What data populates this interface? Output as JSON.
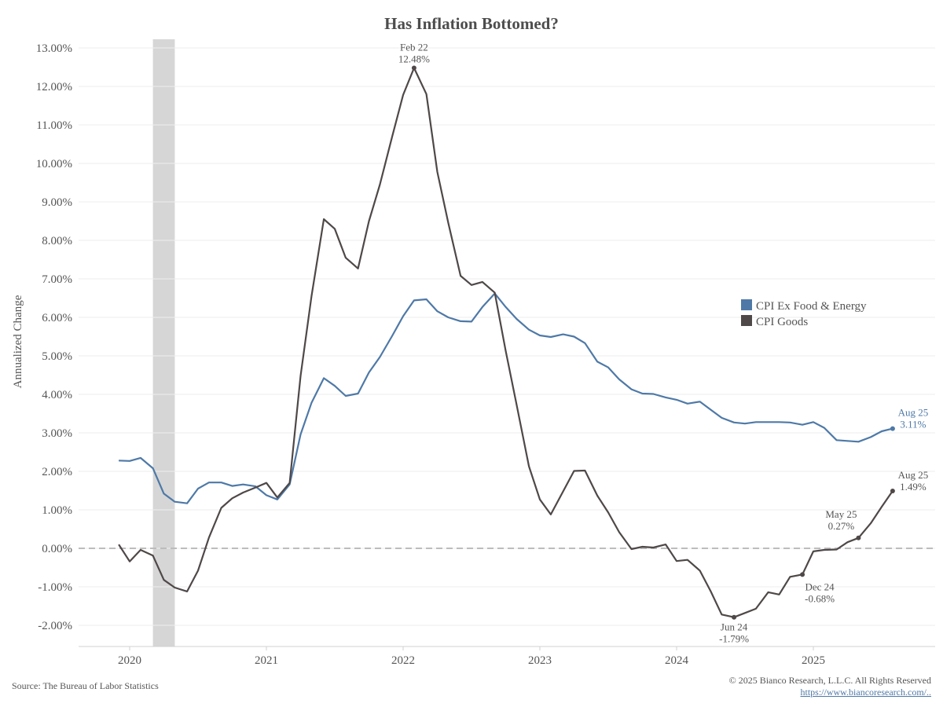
{
  "chart_data": {
    "type": "line",
    "title": "Has Inflation Bottomed?",
    "ylabel": "Annualized Change",
    "xlabel": "",
    "ylim": [
      -2.6,
      13.2
    ],
    "xlim": [
      2019.67,
      2025.96
    ],
    "y_ticks": [
      "13.00%",
      "12.00%",
      "11.00%",
      "10.00%",
      "9.00%",
      "8.00%",
      "7.00%",
      "6.00%",
      "5.00%",
      "4.00%",
      "3.00%",
      "2.00%",
      "1.00%",
      "0.00%",
      "-1.00%",
      "-2.00%"
    ],
    "y_tick_values": [
      13,
      12,
      11,
      10,
      9,
      8,
      7,
      6,
      5,
      4,
      3,
      2,
      1,
      0,
      -1,
      -2
    ],
    "x_ticks": [
      "2020",
      "2021",
      "2022",
      "2023",
      "2024",
      "2025"
    ],
    "x_tick_values": [
      2020,
      2021,
      2022,
      2023,
      2024,
      2025
    ],
    "recession": [
      2020.17,
      2020.33
    ],
    "zero_line": true,
    "legend_position": "center-right",
    "series": [
      {
        "name": "CPI Ex Food & Energy",
        "color": "#4e79a7",
        "x": [
          2019.92,
          2020.0,
          2020.08,
          2020.17,
          2020.25,
          2020.33,
          2020.42,
          2020.5,
          2020.58,
          2020.67,
          2020.75,
          2020.83,
          2020.92,
          2021.0,
          2021.08,
          2021.17,
          2021.25,
          2021.33,
          2021.42,
          2021.5,
          2021.58,
          2021.67,
          2021.75,
          2021.83,
          2021.92,
          2022.0,
          2022.08,
          2022.17,
          2022.25,
          2022.33,
          2022.42,
          2022.5,
          2022.58,
          2022.67,
          2022.75,
          2022.83,
          2022.92,
          2023.0,
          2023.08,
          2023.17,
          2023.25,
          2023.33,
          2023.42,
          2023.5,
          2023.58,
          2023.67,
          2023.75,
          2023.83,
          2023.92,
          2024.0,
          2024.08,
          2024.17,
          2024.25,
          2024.33,
          2024.42,
          2024.5,
          2024.58,
          2024.67,
          2024.75,
          2024.83,
          2024.92,
          2025.0,
          2025.08,
          2025.17,
          2025.25,
          2025.33,
          2025.42,
          2025.5,
          2025.58
        ],
        "values": [
          2.28,
          2.27,
          2.35,
          2.08,
          1.42,
          1.21,
          1.17,
          1.55,
          1.71,
          1.71,
          1.62,
          1.66,
          1.61,
          1.38,
          1.27,
          1.66,
          2.96,
          3.78,
          4.42,
          4.22,
          3.96,
          4.02,
          4.57,
          4.97,
          5.52,
          6.03,
          6.44,
          6.47,
          6.16,
          6.0,
          5.9,
          5.89,
          6.27,
          6.62,
          6.27,
          5.96,
          5.68,
          5.53,
          5.49,
          5.56,
          5.5,
          5.33,
          4.85,
          4.7,
          4.39,
          4.13,
          4.02,
          4.01,
          3.92,
          3.86,
          3.76,
          3.81,
          3.6,
          3.39,
          3.27,
          3.24,
          3.28,
          3.28,
          3.28,
          3.27,
          3.21,
          3.28,
          3.13,
          2.81,
          2.79,
          2.77,
          2.89,
          3.04,
          3.11
        ]
      },
      {
        "name": "CPI Goods",
        "color": "#4f4848",
        "x": [
          2019.92,
          2020.0,
          2020.08,
          2020.17,
          2020.25,
          2020.33,
          2020.42,
          2020.5,
          2020.58,
          2020.67,
          2020.75,
          2020.83,
          2020.92,
          2021.0,
          2021.08,
          2021.17,
          2021.25,
          2021.33,
          2021.42,
          2021.5,
          2021.58,
          2021.67,
          2021.75,
          2021.83,
          2021.92,
          2022.0,
          2022.08,
          2022.17,
          2022.25,
          2022.33,
          2022.42,
          2022.5,
          2022.58,
          2022.67,
          2022.75,
          2022.83,
          2022.92,
          2023.0,
          2023.08,
          2023.17,
          2023.25,
          2023.33,
          2023.42,
          2023.5,
          2023.58,
          2023.67,
          2023.75,
          2023.83,
          2023.92,
          2024.0,
          2024.08,
          2024.17,
          2024.25,
          2024.33,
          2024.42,
          2024.5,
          2024.58,
          2024.67,
          2024.75,
          2024.83,
          2024.92,
          2025.0,
          2025.08,
          2025.17,
          2025.25,
          2025.33,
          2025.42,
          2025.5,
          2025.58
        ],
        "values": [
          0.1,
          -0.34,
          -0.04,
          -0.19,
          -0.82,
          -1.02,
          -1.12,
          -0.58,
          0.28,
          1.05,
          1.3,
          1.45,
          1.58,
          1.7,
          1.32,
          1.7,
          4.48,
          6.55,
          8.55,
          8.3,
          7.55,
          7.27,
          8.5,
          9.45,
          10.7,
          11.78,
          12.48,
          11.8,
          9.78,
          8.46,
          7.08,
          6.84,
          6.92,
          6.64,
          5.13,
          3.73,
          2.13,
          1.27,
          0.88,
          1.48,
          2.01,
          2.02,
          1.37,
          0.93,
          0.42,
          -0.02,
          0.04,
          0.02,
          0.1,
          -0.33,
          -0.3,
          -0.58,
          -1.12,
          -1.72,
          -1.79,
          -1.68,
          -1.57,
          -1.14,
          -1.2,
          -0.74,
          -0.68,
          -0.08,
          -0.04,
          -0.03,
          0.16,
          0.27,
          0.65,
          1.08,
          1.49
        ]
      }
    ],
    "annotations": [
      {
        "series": 1,
        "x": 2022.08,
        "y": 12.48,
        "label": "Feb 22",
        "value": "12.48%",
        "pos": "above"
      },
      {
        "series": 1,
        "x": 2024.42,
        "y": -1.79,
        "label": "Jun 24",
        "value": "-1.79%",
        "pos": "below"
      },
      {
        "series": 1,
        "x": 2024.92,
        "y": -0.68,
        "label": "Dec 24",
        "value": "-0.68%",
        "pos": "below-right"
      },
      {
        "series": 1,
        "x": 2025.33,
        "y": 0.27,
        "label": "May 25",
        "value": "0.27%",
        "pos": "above-left"
      },
      {
        "series": 1,
        "x": 2025.58,
        "y": 1.49,
        "label": "Aug 25",
        "value": "1.49%",
        "pos": "above-right"
      },
      {
        "series": 0,
        "x": 2025.58,
        "y": 3.11,
        "label": "Aug 25",
        "value": "3.11%",
        "pos": "above-right"
      }
    ]
  },
  "footer": {
    "source": "Source: The Bureau of Labor Statistics",
    "copyright": "© 2025 Bianco Research, L.L.C. All Rights Reserved",
    "url": "https://www.biancoresearch.com/.."
  }
}
